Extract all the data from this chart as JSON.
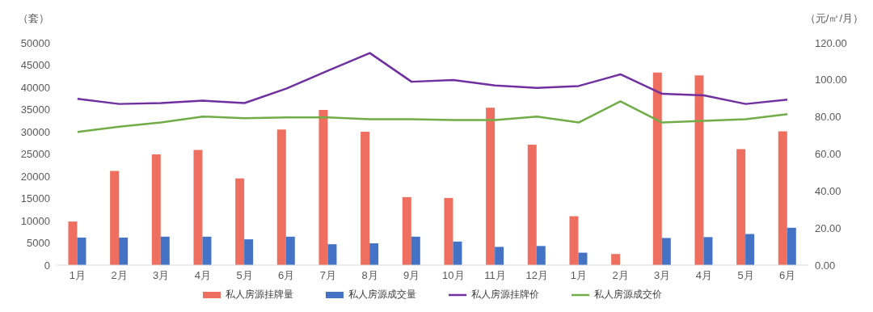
{
  "chart_data": {
    "type": "bar",
    "ylabel": "（套）",
    "y2label": "（元/㎡/月）",
    "categories": [
      "1月",
      "2月",
      "3月",
      "4月",
      "5月",
      "6月",
      "7月",
      "8月",
      "9月",
      "10月",
      "11月",
      "12月",
      "1月",
      "2月",
      "3月",
      "4月",
      "5月",
      "6月"
    ],
    "series": [
      {
        "name": "私人房源挂牌量",
        "color": "#ee6f5f",
        "values": [
          9800,
          21200,
          24900,
          25900,
          19500,
          30500,
          34900,
          30000,
          15300,
          15100,
          35400,
          27100,
          11000,
          2500,
          43300,
          42700,
          26100,
          30100
        ]
      },
      {
        "name": "私人房源成交量",
        "color": "#4472c4",
        "values": [
          6200,
          6200,
          6400,
          6400,
          5800,
          6400,
          4700,
          4900,
          6400,
          5300,
          4100,
          4300,
          2800,
          null,
          6100,
          6300,
          7000,
          8400
        ]
      },
      {
        "name": "私人房源挂牌价",
        "type": "line",
        "axis": "y2",
        "color": "#7030a0",
        "values": [
          89.8,
          87,
          87.5,
          88.8,
          87.5,
          95.3,
          105,
          114.5,
          99,
          99.9,
          97,
          95.7,
          96.7,
          103,
          92.5,
          91.6,
          87,
          89.3
        ]
      },
      {
        "name": "私人房源成交价",
        "type": "line",
        "axis": "y2",
        "color": "#70ad47",
        "values": [
          71.9,
          74.7,
          77,
          80.2,
          79.3,
          79.7,
          79.7,
          78.8,
          78.8,
          78.3,
          78.3,
          80.2,
          77,
          88.4,
          77,
          77.9,
          78.8,
          81.5
        ]
      }
    ],
    "ylim": [
      0,
      50000
    ],
    "yticks": [
      0,
      5000,
      10000,
      15000,
      20000,
      25000,
      30000,
      35000,
      40000,
      45000,
      50000
    ],
    "y2lim": [
      0,
      120
    ],
    "y2ticks": [
      {
        "value": 0,
        "label": "0.00"
      },
      {
        "value": 20,
        "label": "20.00"
      },
      {
        "value": 40,
        "label": "40.00"
      },
      {
        "value": 60,
        "label": "60.00"
      },
      {
        "value": 80,
        "label": "80.00"
      },
      {
        "value": 100,
        "label": "100.00"
      },
      {
        "value": 120,
        "label": "120.00"
      }
    ],
    "grid": false,
    "legend": "bottom",
    "marker": "none",
    "line_style": "solid"
  }
}
